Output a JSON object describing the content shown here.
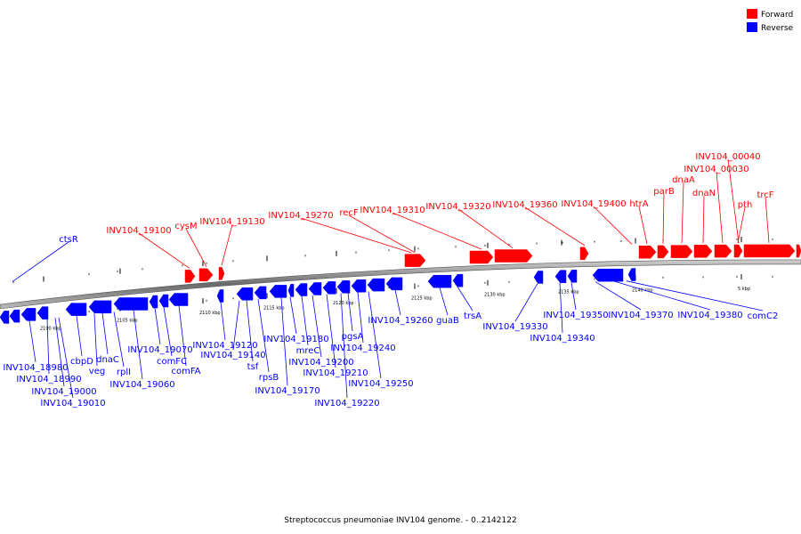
{
  "legend": {
    "forward": {
      "label": "Forward",
      "color": "#ff0000"
    },
    "reverse": {
      "label": "Reverse",
      "color": "#0000ff"
    }
  },
  "caption": "Streptococcus pneumoniae INV104 genome. - 0..2142122",
  "genome_length": 2142122,
  "scale_labels": [
    "2100 kbp",
    "2105 kbp",
    "2110 kbp",
    "2115 kbp",
    "2120 kbp",
    "2125 kbp",
    "2130 kbp",
    "2135 kbp",
    "2140 kbp",
    "5 kbp"
  ],
  "forward_genes": [
    "INV104_19100",
    "cysM",
    "INV104_19130",
    "INV104_19270",
    "recF",
    "INV104_19310",
    "INV104_19320",
    "INV104_19360",
    "INV104_19400",
    "htrA",
    "parB",
    "dnaA",
    "dnaN",
    "INV104_00030",
    "INV104_00040",
    "pth",
    "trcF"
  ],
  "reverse_genes": [
    "ctsR",
    "INV104_18980",
    "INV104_18990",
    "INV104_19000",
    "INV104_19010",
    "cbpD",
    "veg",
    "dnaC",
    "rplI",
    "INV104_19060",
    "INV104_19070",
    "comFC",
    "comFA",
    "INV104_19120",
    "INV104_19140",
    "tsf",
    "rpsB",
    "INV104_19170",
    "INV104_19180",
    "mreC",
    "INV104_19200",
    "INV104_19210",
    "INV104_19220",
    "pgsA",
    "INV104_19240",
    "INV104_19250",
    "INV104_19260",
    "guaB",
    "trsA",
    "INV104_19330",
    "INV104_19340",
    "INV104_19350",
    "INV104_19370",
    "INV104_19380",
    "comC2"
  ]
}
